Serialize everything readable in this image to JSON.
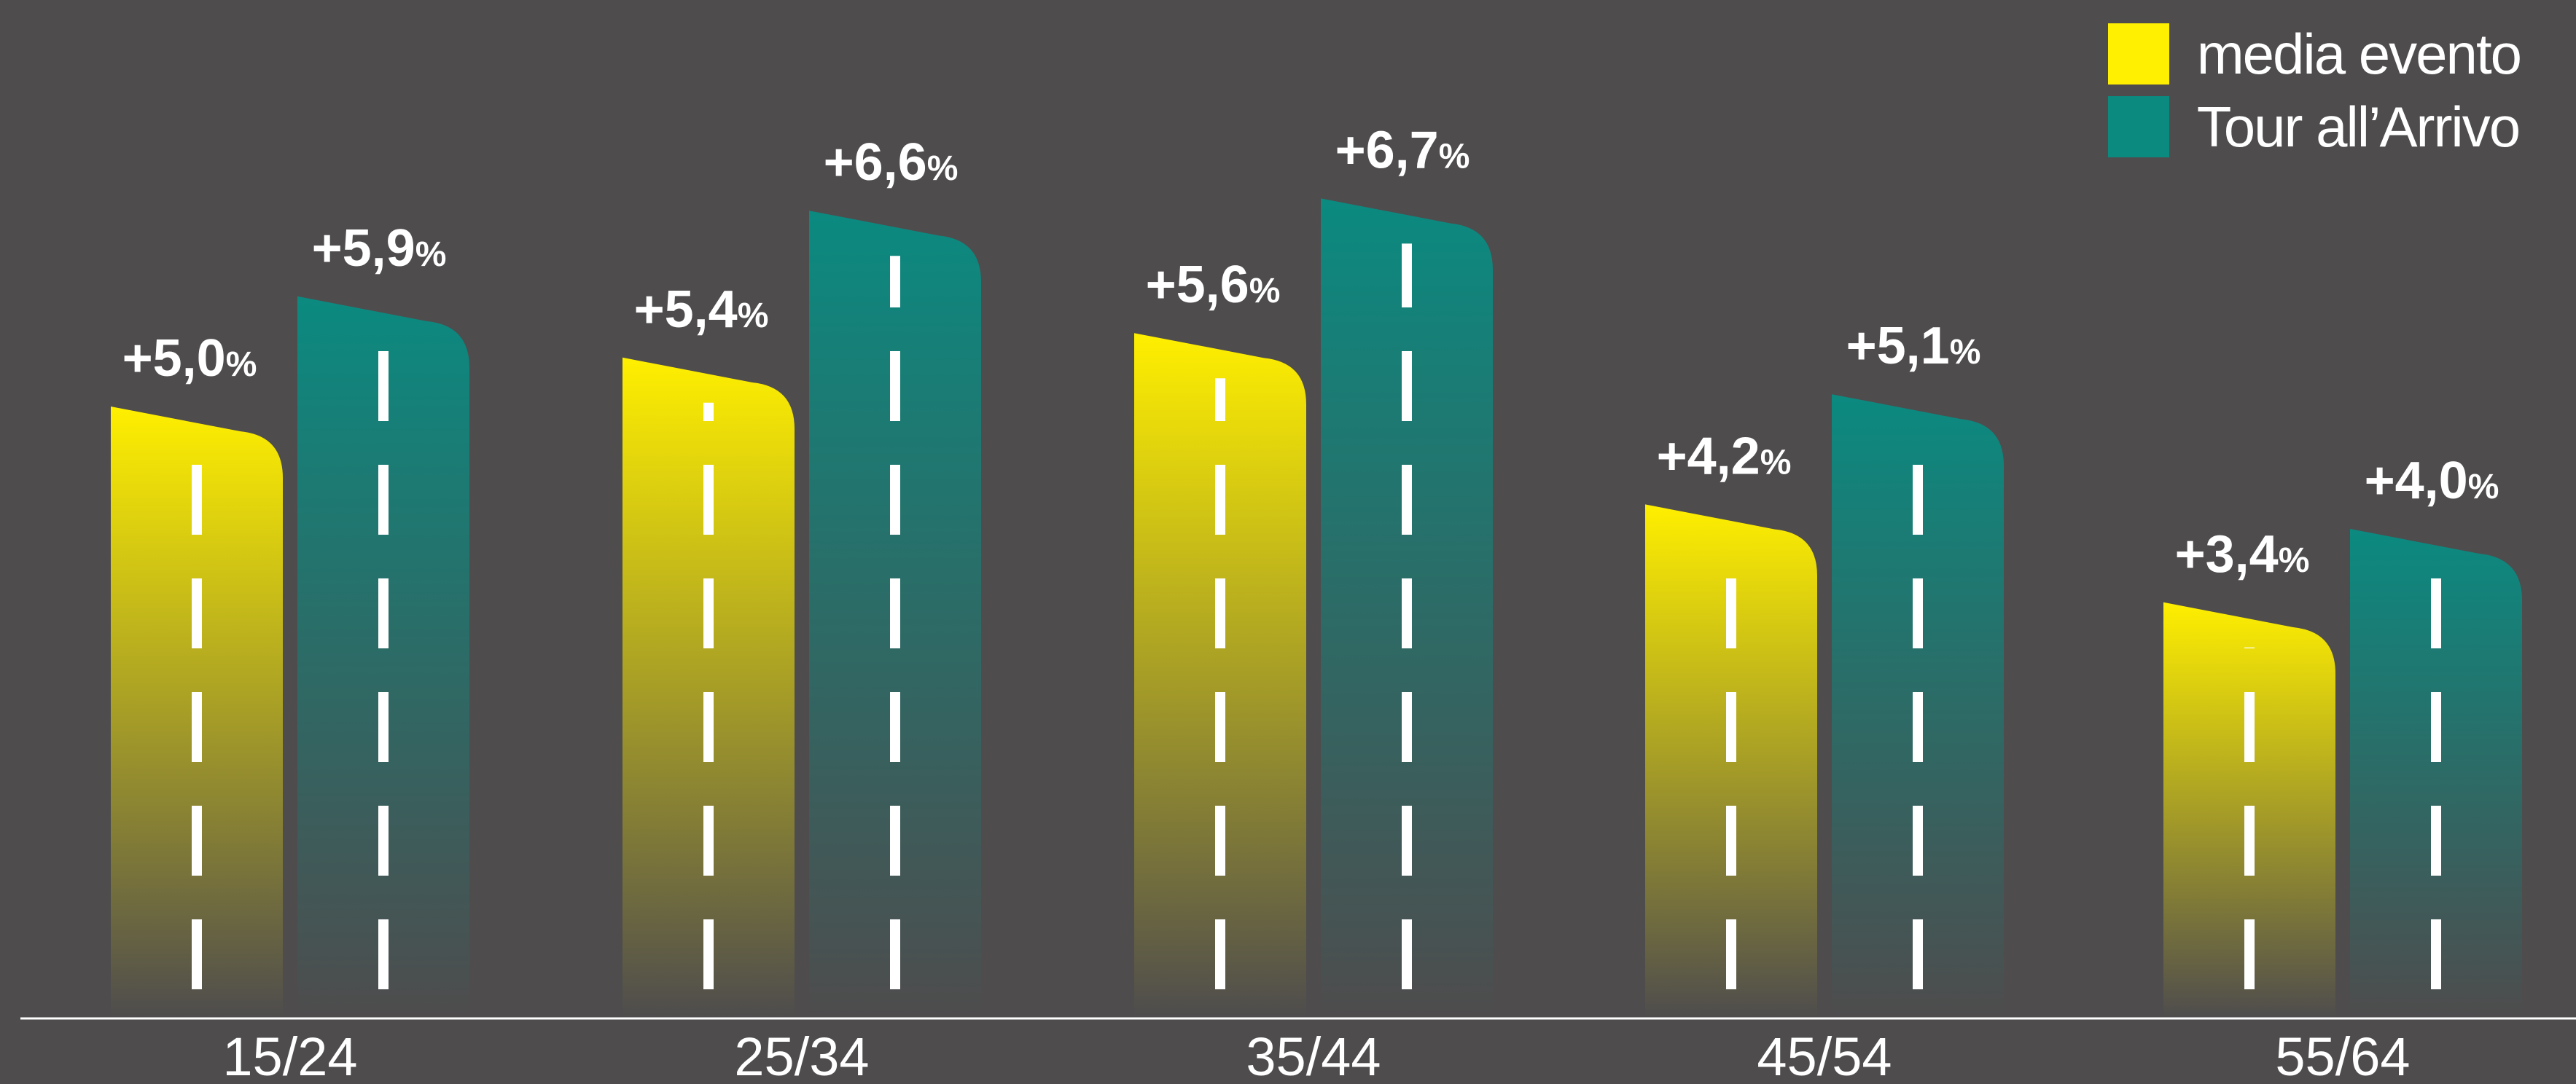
{
  "chart_data": {
    "type": "bar",
    "title": "",
    "xlabel": "",
    "ylabel": "",
    "categories": [
      "15/24",
      "25/34",
      "35/44",
      "45/54",
      "55/64"
    ],
    "series": [
      {
        "name": "media evento",
        "values": [
          5.0,
          5.4,
          5.6,
          4.2,
          3.4
        ],
        "labels": [
          "+5,0",
          "+5,4",
          "+5,6",
          "+4,2",
          "+3,4"
        ],
        "color": "#ffef00"
      },
      {
        "name": "Tour all’Arrivo",
        "values": [
          5.9,
          6.6,
          6.7,
          5.1,
          4.0
        ],
        "labels": [
          "+5,9",
          "+6,6",
          "+6,7",
          "+5,1",
          "+4,0"
        ],
        "color": "#0b8a80"
      }
    ],
    "value_suffix": "%",
    "legend_position": "top-right",
    "grid": false,
    "bar_style": "road with white dashed center line, color fading to background at base"
  },
  "colors": {
    "background": "#4e4c4d",
    "label": "#ffffff",
    "baseline": "#ffffff"
  }
}
